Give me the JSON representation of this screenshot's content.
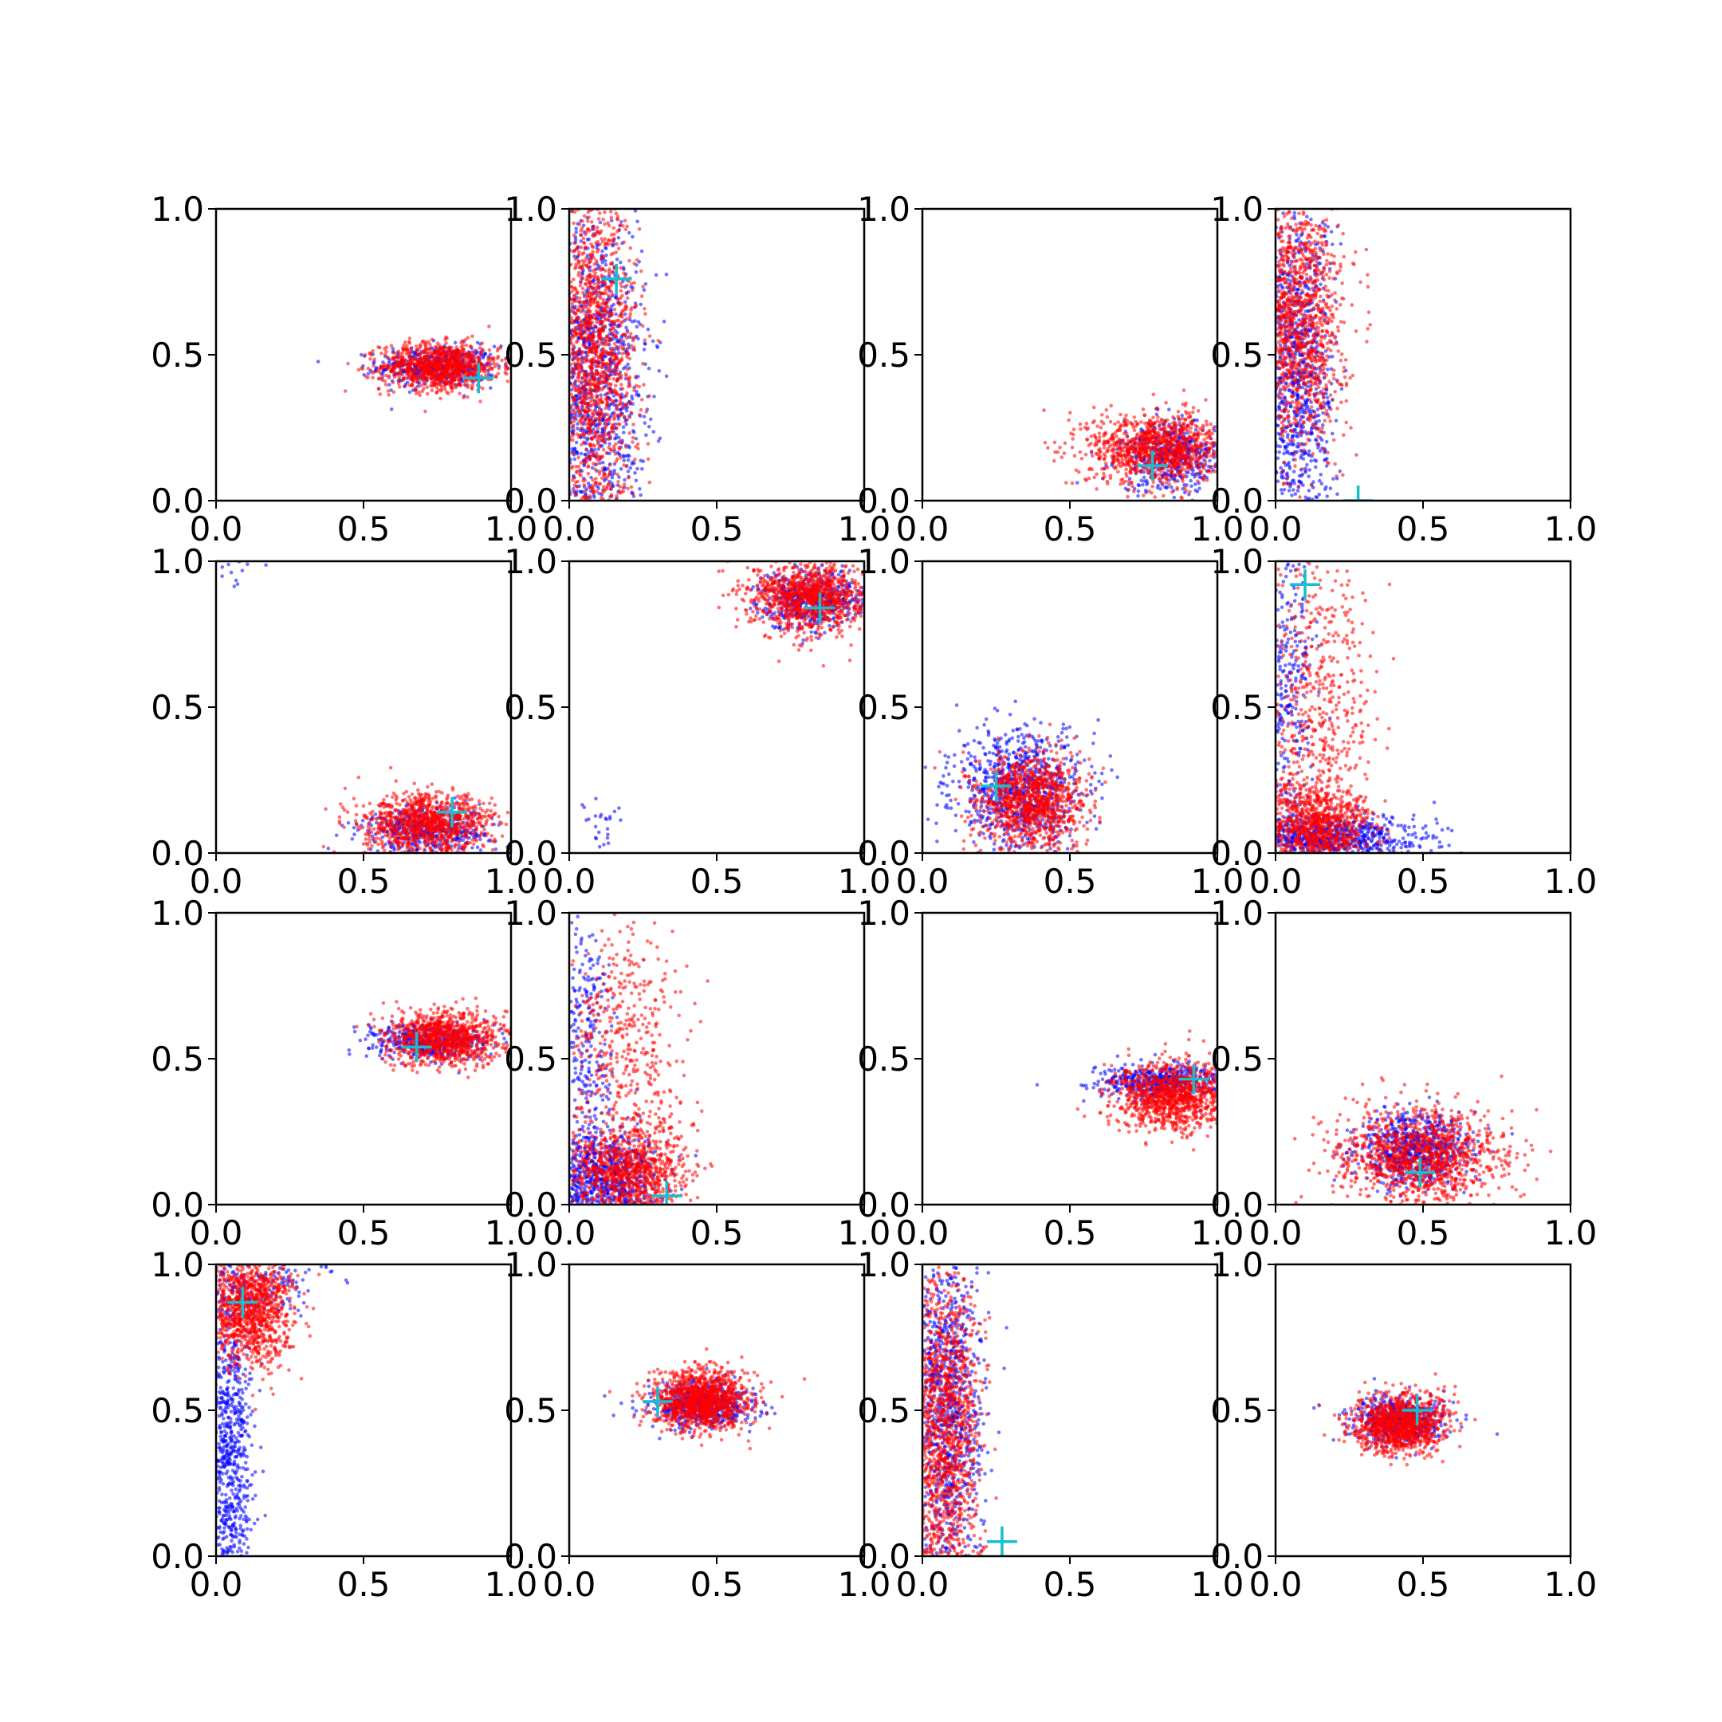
{
  "figure": {
    "rows": 4,
    "cols": 4,
    "colors": {
      "series_a": "#0000ff",
      "series_b": "#ff0000",
      "marker": "#17becf",
      "axes": "#000000"
    }
  },
  "chart_data": [
    {
      "type": "scatter",
      "xlim": [
        0,
        1
      ],
      "ylim": [
        0,
        1
      ],
      "xticks": [
        "0.0",
        "0.5",
        "1.0"
      ],
      "yticks": [
        "0.0",
        "0.5",
        "1.0"
      ],
      "grid": false,
      "marker": {
        "x": 0.89,
        "y": 0.42,
        "symbol": "+"
      },
      "series": [
        {
          "color": "#0000ff",
          "count": 450,
          "clusters": [
            {
              "cx": 0.75,
              "cy": 0.46,
              "sx": 0.1,
              "sy": 0.035
            }
          ]
        },
        {
          "color": "#ff0000",
          "count": 1000,
          "clusters": [
            {
              "cx": 0.76,
              "cy": 0.46,
              "sx": 0.1,
              "sy": 0.04
            }
          ]
        }
      ]
    },
    {
      "type": "scatter",
      "xlim": [
        0,
        1
      ],
      "ylim": [
        0,
        1
      ],
      "xticks": [
        "0.0",
        "0.5",
        "1.0"
      ],
      "yticks": [
        "0.0",
        "0.5",
        "1.0"
      ],
      "grid": false,
      "marker": {
        "x": 0.16,
        "y": 0.76,
        "symbol": "+"
      },
      "series": [
        {
          "color": "#0000ff",
          "count": 900,
          "clusters": [
            {
              "cx": 0.1,
              "cy": 0.45,
              "sx": 0.08,
              "sy": 0.28
            }
          ]
        },
        {
          "color": "#ff0000",
          "count": 1300,
          "clusters": [
            {
              "cx": 0.09,
              "cy": 0.5,
              "sx": 0.07,
              "sy": 0.27
            }
          ]
        }
      ]
    },
    {
      "type": "scatter",
      "xlim": [
        0,
        1
      ],
      "ylim": [
        0,
        1
      ],
      "xticks": [
        "0.0",
        "0.5",
        "1.0"
      ],
      "yticks": [
        "0.0",
        "0.5",
        "1.0"
      ],
      "grid": false,
      "marker": {
        "x": 0.78,
        "y": 0.12,
        "symbol": "+"
      },
      "series": [
        {
          "color": "#0000ff",
          "count": 500,
          "clusters": [
            {
              "cx": 0.85,
              "cy": 0.15,
              "sx": 0.09,
              "sy": 0.06
            }
          ]
        },
        {
          "color": "#ff0000",
          "count": 1100,
          "clusters": [
            {
              "cx": 0.8,
              "cy": 0.18,
              "sx": 0.12,
              "sy": 0.06
            }
          ]
        }
      ]
    },
    {
      "type": "scatter",
      "xlim": [
        0,
        1
      ],
      "ylim": [
        0,
        1
      ],
      "xticks": [
        "0.0",
        "0.5",
        "1.0"
      ],
      "yticks": [
        "0.0",
        "0.5",
        "1.0"
      ],
      "grid": false,
      "marker": {
        "x": 0.28,
        "y": 0.0,
        "symbol": "+"
      },
      "series": [
        {
          "color": "#0000ff",
          "count": 800,
          "clusters": [
            {
              "cx": 0.08,
              "cy": 0.45,
              "sx": 0.06,
              "sy": 0.28
            }
          ]
        },
        {
          "color": "#ff0000",
          "count": 1100,
          "clusters": [
            {
              "cx": 0.09,
              "cy": 0.62,
              "sx": 0.07,
              "sy": 0.22
            }
          ]
        }
      ]
    },
    {
      "type": "scatter",
      "xlim": [
        0,
        1
      ],
      "ylim": [
        0,
        1
      ],
      "xticks": [
        "0.0",
        "0.5",
        "1.0"
      ],
      "yticks": [
        "0.0",
        "0.5",
        "1.0"
      ],
      "grid": false,
      "marker": {
        "x": 0.8,
        "y": 0.14,
        "symbol": "+"
      },
      "series": [
        {
          "color": "#0000ff",
          "count": 450,
          "clusters": [
            {
              "cx": 0.72,
              "cy": 0.08,
              "sx": 0.11,
              "sy": 0.04
            },
            {
              "cx": 0.1,
              "cy": 0.96,
              "sx": 0.05,
              "sy": 0.02,
              "n": 12
            }
          ]
        },
        {
          "color": "#ff0000",
          "count": 1000,
          "clusters": [
            {
              "cx": 0.72,
              "cy": 0.1,
              "sx": 0.11,
              "sy": 0.05
            }
          ]
        }
      ]
    },
    {
      "type": "scatter",
      "xlim": [
        0,
        1
      ],
      "ylim": [
        0,
        1
      ],
      "xticks": [
        "0.0",
        "0.5",
        "1.0"
      ],
      "yticks": [
        "0.0",
        "0.5",
        "1.0"
      ],
      "grid": false,
      "marker": {
        "x": 0.85,
        "y": 0.84,
        "symbol": "+"
      },
      "series": [
        {
          "color": "#0000ff",
          "count": 500,
          "clusters": [
            {
              "cx": 0.82,
              "cy": 0.87,
              "sx": 0.09,
              "sy": 0.05
            },
            {
              "cx": 0.12,
              "cy": 0.07,
              "sx": 0.05,
              "sy": 0.05,
              "n": 25
            }
          ]
        },
        {
          "color": "#ff0000",
          "count": 1100,
          "clusters": [
            {
              "cx": 0.82,
              "cy": 0.88,
              "sx": 0.1,
              "sy": 0.06
            }
          ]
        }
      ]
    },
    {
      "type": "scatter",
      "xlim": [
        0,
        1
      ],
      "ylim": [
        0,
        1
      ],
      "xticks": [
        "0.0",
        "0.5",
        "1.0"
      ],
      "yticks": [
        "0.0",
        "0.5",
        "1.0"
      ],
      "grid": false,
      "marker": {
        "x": 0.25,
        "y": 0.23,
        "symbol": "+"
      },
      "series": [
        {
          "color": "#0000ff",
          "count": 800,
          "clusters": [
            {
              "cx": 0.33,
              "cy": 0.22,
              "sx": 0.11,
              "sy": 0.1
            }
          ]
        },
        {
          "color": "#ff0000",
          "count": 1100,
          "clusters": [
            {
              "cx": 0.37,
              "cy": 0.18,
              "sx": 0.09,
              "sy": 0.08
            }
          ]
        }
      ]
    },
    {
      "type": "scatter",
      "xlim": [
        0,
        1
      ],
      "ylim": [
        0,
        1
      ],
      "xticks": [
        "0.0",
        "0.5",
        "1.0"
      ],
      "yticks": [
        "0.0",
        "0.5",
        "1.0"
      ],
      "grid": false,
      "marker": {
        "x": 0.1,
        "y": 0.92,
        "symbol": "+"
      },
      "series": [
        {
          "color": "#0000ff",
          "count": 900,
          "clusters": [
            {
              "cx": 0.2,
              "cy": 0.05,
              "sx": 0.16,
              "sy": 0.04
            },
            {
              "cx": 0.05,
              "cy": 0.55,
              "sx": 0.04,
              "sy": 0.28,
              "n": 250
            }
          ]
        },
        {
          "color": "#ff0000",
          "count": 1300,
          "clusters": [
            {
              "cx": 0.15,
              "cy": 0.1,
              "sx": 0.09,
              "sy": 0.07
            },
            {
              "cx": 0.15,
              "cy": 0.5,
              "sx": 0.09,
              "sy": 0.25,
              "n": 500
            }
          ]
        }
      ]
    },
    {
      "type": "scatter",
      "xlim": [
        0,
        1
      ],
      "ylim": [
        0,
        1
      ],
      "xticks": [
        "0.0",
        "0.5",
        "1.0"
      ],
      "yticks": [
        "0.0",
        "0.5",
        "1.0"
      ],
      "grid": false,
      "marker": {
        "x": 0.68,
        "y": 0.54,
        "symbol": "+"
      },
      "series": [
        {
          "color": "#0000ff",
          "count": 450,
          "clusters": [
            {
              "cx": 0.72,
              "cy": 0.56,
              "sx": 0.1,
              "sy": 0.03
            }
          ]
        },
        {
          "color": "#ff0000",
          "count": 1000,
          "clusters": [
            {
              "cx": 0.78,
              "cy": 0.57,
              "sx": 0.1,
              "sy": 0.045
            }
          ]
        }
      ]
    },
    {
      "type": "scatter",
      "xlim": [
        0,
        1
      ],
      "ylim": [
        0,
        1
      ],
      "xticks": [
        "0.0",
        "0.5",
        "1.0"
      ],
      "yticks": [
        "0.0",
        "0.5",
        "1.0"
      ],
      "grid": false,
      "marker": {
        "x": 0.33,
        "y": 0.03,
        "symbol": "+"
      },
      "series": [
        {
          "color": "#0000ff",
          "count": 900,
          "clusters": [
            {
              "cx": 0.12,
              "cy": 0.1,
              "sx": 0.09,
              "sy": 0.08
            },
            {
              "cx": 0.06,
              "cy": 0.55,
              "sx": 0.04,
              "sy": 0.25,
              "n": 250
            }
          ]
        },
        {
          "color": "#ff0000",
          "count": 1300,
          "clusters": [
            {
              "cx": 0.2,
              "cy": 0.12,
              "sx": 0.1,
              "sy": 0.08
            },
            {
              "cx": 0.2,
              "cy": 0.5,
              "sx": 0.1,
              "sy": 0.22,
              "n": 450
            }
          ]
        }
      ]
    },
    {
      "type": "scatter",
      "xlim": [
        0,
        1
      ],
      "ylim": [
        0,
        1
      ],
      "xticks": [
        "0.0",
        "0.5",
        "1.0"
      ],
      "yticks": [
        "0.0",
        "0.5",
        "1.0"
      ],
      "grid": false,
      "marker": {
        "x": 0.92,
        "y": 0.43,
        "symbol": "+"
      },
      "series": [
        {
          "color": "#0000ff",
          "count": 500,
          "clusters": [
            {
              "cx": 0.8,
              "cy": 0.42,
              "sx": 0.1,
              "sy": 0.03
            }
          ]
        },
        {
          "color": "#ff0000",
          "count": 1100,
          "clusters": [
            {
              "cx": 0.85,
              "cy": 0.37,
              "sx": 0.1,
              "sy": 0.06
            }
          ]
        }
      ]
    },
    {
      "type": "scatter",
      "xlim": [
        0,
        1
      ],
      "ylim": [
        0,
        1
      ],
      "xticks": [
        "0.0",
        "0.5",
        "1.0"
      ],
      "yticks": [
        "0.0",
        "0.5",
        "1.0"
      ],
      "grid": false,
      "marker": {
        "x": 0.49,
        "y": 0.11,
        "symbol": "+"
      },
      "series": [
        {
          "color": "#0000ff",
          "count": 700,
          "clusters": [
            {
              "cx": 0.47,
              "cy": 0.19,
              "sx": 0.09,
              "sy": 0.06
            }
          ]
        },
        {
          "color": "#ff0000",
          "count": 1200,
          "clusters": [
            {
              "cx": 0.49,
              "cy": 0.17,
              "sx": 0.14,
              "sy": 0.08
            }
          ]
        }
      ]
    },
    {
      "type": "scatter",
      "xlim": [
        0,
        1
      ],
      "ylim": [
        0,
        1
      ],
      "xticks": [
        "0.0",
        "0.5",
        "1.0"
      ],
      "yticks": [
        "0.0",
        "0.5",
        "1.0"
      ],
      "grid": false,
      "marker": {
        "x": 0.09,
        "y": 0.87,
        "symbol": "+"
      },
      "series": [
        {
          "color": "#0000ff",
          "count": 800,
          "clusters": [
            {
              "cx": 0.05,
              "cy": 0.4,
              "sx": 0.04,
              "sy": 0.28
            },
            {
              "cx": 0.15,
              "cy": 0.92,
              "sx": 0.1,
              "sy": 0.05,
              "n": 150
            }
          ]
        },
        {
          "color": "#ff0000",
          "count": 1100,
          "clusters": [
            {
              "cx": 0.12,
              "cy": 0.85,
              "sx": 0.07,
              "sy": 0.1
            }
          ]
        }
      ]
    },
    {
      "type": "scatter",
      "xlim": [
        0,
        1
      ],
      "ylim": [
        0,
        1
      ],
      "xticks": [
        "0.0",
        "0.5",
        "1.0"
      ],
      "yticks": [
        "0.0",
        "0.5",
        "1.0"
      ],
      "grid": false,
      "marker": {
        "x": 0.3,
        "y": 0.53,
        "symbol": "+"
      },
      "series": [
        {
          "color": "#0000ff",
          "count": 600,
          "clusters": [
            {
              "cx": 0.45,
              "cy": 0.52,
              "sx": 0.08,
              "sy": 0.04
            }
          ]
        },
        {
          "color": "#ff0000",
          "count": 1200,
          "clusters": [
            {
              "cx": 0.45,
              "cy": 0.53,
              "sx": 0.08,
              "sy": 0.05
            }
          ]
        }
      ]
    },
    {
      "type": "scatter",
      "xlim": [
        0,
        1
      ],
      "ylim": [
        0,
        1
      ],
      "xticks": [
        "0.0",
        "0.5",
        "1.0"
      ],
      "yticks": [
        "0.0",
        "0.5",
        "1.0"
      ],
      "grid": false,
      "marker": {
        "x": 0.27,
        "y": 0.05,
        "symbol": "+"
      },
      "series": [
        {
          "color": "#0000ff",
          "count": 900,
          "clusters": [
            {
              "cx": 0.09,
              "cy": 0.5,
              "sx": 0.06,
              "sy": 0.28
            }
          ]
        },
        {
          "color": "#ff0000",
          "count": 1200,
          "clusters": [
            {
              "cx": 0.08,
              "cy": 0.45,
              "sx": 0.06,
              "sy": 0.28
            }
          ]
        }
      ]
    },
    {
      "type": "scatter",
      "xlim": [
        0,
        1
      ],
      "ylim": [
        0,
        1
      ],
      "xticks": [
        "0.0",
        "0.5",
        "1.0"
      ],
      "yticks": [
        "0.0",
        "0.5",
        "1.0"
      ],
      "grid": false,
      "marker": {
        "x": 0.48,
        "y": 0.5,
        "symbol": "+"
      },
      "series": [
        {
          "color": "#0000ff",
          "count": 550,
          "clusters": [
            {
              "cx": 0.42,
              "cy": 0.47,
              "sx": 0.08,
              "sy": 0.04
            }
          ]
        },
        {
          "color": "#ff0000",
          "count": 1100,
          "clusters": [
            {
              "cx": 0.42,
              "cy": 0.45,
              "sx": 0.08,
              "sy": 0.05
            }
          ]
        }
      ]
    }
  ]
}
